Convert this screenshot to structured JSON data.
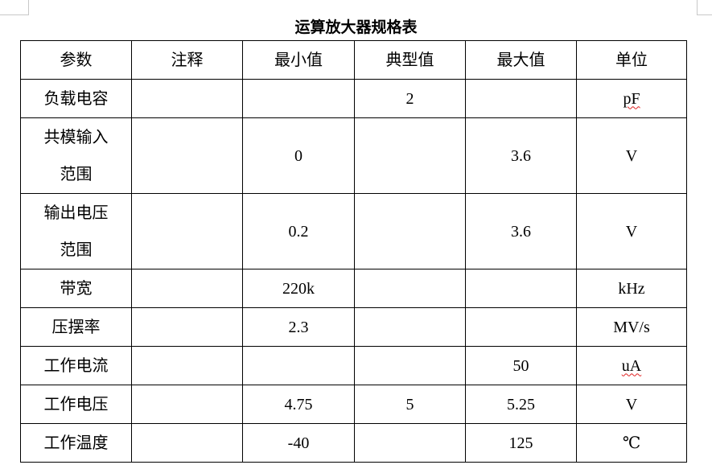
{
  "title": "运算放大器规格表",
  "columns": [
    "参数",
    "注释",
    "最小值",
    "典型值",
    "最大值",
    "单位"
  ],
  "rows": [
    {
      "param": [
        "负载电容"
      ],
      "note": "",
      "min": "",
      "typ": "2",
      "max": "",
      "unit": "pF",
      "unit_spellcheck": true
    },
    {
      "param": [
        "共模输入",
        "范围"
      ],
      "note": "",
      "min": "0",
      "typ": "",
      "max": "3.6",
      "unit": "V"
    },
    {
      "param": [
        "输出电压",
        "范围"
      ],
      "note": "",
      "min": "0.2",
      "typ": "",
      "max": "3.6",
      "unit": "V"
    },
    {
      "param": [
        "带宽"
      ],
      "note": "",
      "min": "220k",
      "typ": "",
      "max": "",
      "unit": "kHz"
    },
    {
      "param": [
        "压摆率"
      ],
      "note": "",
      "min": "2.3",
      "typ": "",
      "max": "",
      "unit": "MV/s"
    },
    {
      "param": [
        "工作电流"
      ],
      "note": "",
      "min": "",
      "typ": "",
      "max": "50",
      "unit": "uA",
      "unit_spellcheck": true
    },
    {
      "param": [
        "工作电压"
      ],
      "note": "",
      "min": "4.75",
      "typ": "5",
      "max": "5.25",
      "unit": "V"
    },
    {
      "param": [
        "工作温度"
      ],
      "note": "",
      "min": "-40",
      "typ": "",
      "max": "125",
      "unit": "℃"
    }
  ]
}
